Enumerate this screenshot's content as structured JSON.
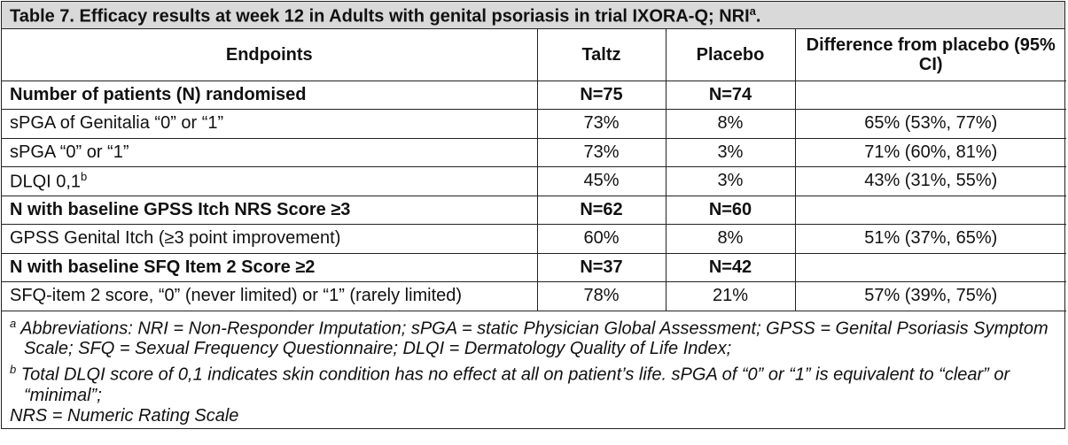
{
  "caption": {
    "text": "Table 7. Efficacy results at week 12 in Adults with genital psoriasis in trial IXORA-Q; NRI",
    "sup": "a",
    "end": "."
  },
  "headers": {
    "endpoints": "Endpoints",
    "taltz": "Taltz",
    "placebo": "Placebo",
    "difference": "Difference from placebo (95% CI)"
  },
  "rows": [
    {
      "label": "Number of patients (N) randomised",
      "taltz": "N=75",
      "placebo": "N=74",
      "diff": "",
      "bold": true
    },
    {
      "label": "sPGA of Genitalia “0” or “1”",
      "taltz": "73%",
      "placebo": "8%",
      "diff": "65% (53%, 77%)"
    },
    {
      "label": "sPGA “0” or “1”",
      "taltz": "73%",
      "placebo": "3%",
      "diff": "71% (60%, 81%)"
    },
    {
      "label": "DLQI 0,1",
      "sup": "b",
      "taltz": "45%",
      "placebo": "3%",
      "diff": "43% (31%, 55%)"
    },
    {
      "label": "N with baseline GPSS Itch NRS Score ≥3",
      "taltz": "N=62",
      "placebo": "N=60",
      "diff": "",
      "bold": true
    },
    {
      "label": "GPSS Genital Itch (≥3 point improvement)",
      "taltz": "60%",
      "placebo": "8%",
      "diff": "51% (37%, 65%)"
    },
    {
      "label": "N with baseline SFQ Item 2 Score ≥2",
      "taltz": "N=37",
      "placebo": "N=42",
      "diff": "",
      "bold": true
    },
    {
      "label": "SFQ-item 2 score, “0” (never limited) or “1” (rarely limited)",
      "taltz": "78%",
      "placebo": "21%",
      "diff": "57% (39%, 75%)"
    }
  ],
  "footnotes": {
    "a_mark": "a",
    "a_text": "Abbreviations: NRI = Non-Responder Imputation; sPGA = static Physician Global Assessment; GPSS = Genital Psoriasis Symptom Scale; SFQ = Sexual Frequency Questionnaire; DLQI = Dermatology Quality of Life Index;",
    "b_mark": "b",
    "b_text": "Total DLQI score of 0,1 indicates skin condition has no effect at all on patient’s life. sPGA of “0” or “1” is equivalent to “clear” or “minimal”;",
    "nrs": "NRS = Numeric Rating Scale"
  }
}
